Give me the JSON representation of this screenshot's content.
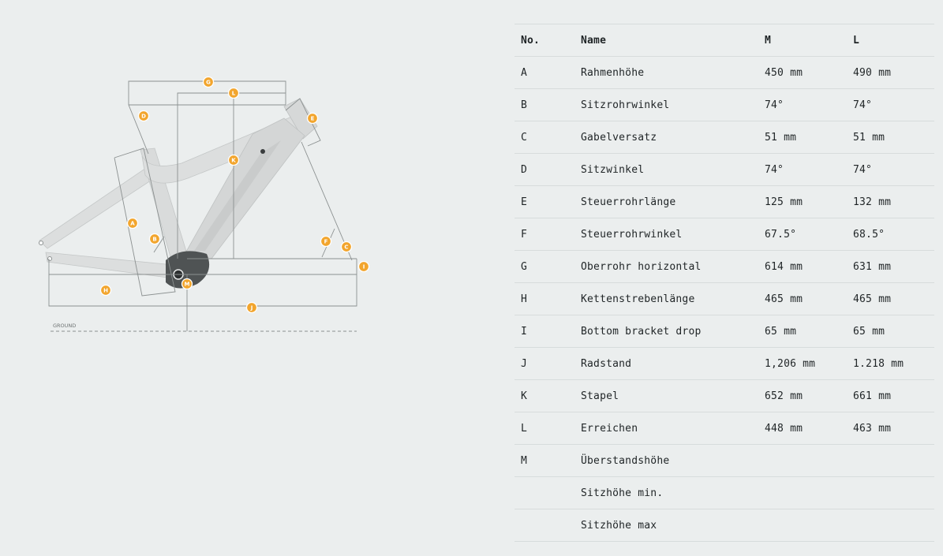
{
  "colors": {
    "background": "#ebeeee",
    "badge": "#f2a52d",
    "frame": "#d9dbdb",
    "rule": "#d7dcdc"
  },
  "diagram": {
    "ground_label": "GROUND",
    "badges": {
      "A": "A",
      "B": "B",
      "C": "C",
      "D": "D",
      "E": "E",
      "F": "F",
      "G": "G",
      "H": "H",
      "I": "I",
      "J": "J",
      "K": "K",
      "L": "L",
      "M": "M"
    }
  },
  "table": {
    "headers": {
      "no": "No.",
      "name": "Name",
      "m": "M",
      "l": "L"
    },
    "rows": [
      {
        "no": "A",
        "name": "Rahmenhöhe",
        "m": "450 mm",
        "l": "490 mm"
      },
      {
        "no": "B",
        "name": "Sitzrohrwinkel",
        "m": "74°",
        "l": "74°"
      },
      {
        "no": "C",
        "name": "Gabelversatz",
        "m": "51 mm",
        "l": "51 mm"
      },
      {
        "no": "D",
        "name": "Sitzwinkel",
        "m": "74°",
        "l": "74°"
      },
      {
        "no": "E",
        "name": "Steuerrohrlänge",
        "m": "125 mm",
        "l": "132 mm"
      },
      {
        "no": "F",
        "name": "Steuerrohrwinkel",
        "m": "67.5°",
        "l": "68.5°"
      },
      {
        "no": "G",
        "name": "Oberrohr horizontal",
        "m": "614 mm",
        "l": "631 mm"
      },
      {
        "no": "H",
        "name": "Kettenstrebenlänge",
        "m": "465 mm",
        "l": "465 mm"
      },
      {
        "no": "I",
        "name": "Bottom bracket drop",
        "m": "65 mm",
        "l": "65 mm"
      },
      {
        "no": "J",
        "name": "Radstand",
        "m": "1,206 mm",
        "l": "1.218 mm"
      },
      {
        "no": "K",
        "name": "Stapel",
        "m": "652 mm",
        "l": "661 mm"
      },
      {
        "no": "L",
        "name": "Erreichen",
        "m": "448 mm",
        "l": "463 mm"
      },
      {
        "no": "M",
        "name": "Überstandshöhe",
        "m": "",
        "l": ""
      },
      {
        "no": "",
        "name": "Sitzhöhe min.",
        "m": "",
        "l": ""
      },
      {
        "no": "",
        "name": "Sitzhöhe max",
        "m": "",
        "l": ""
      }
    ]
  }
}
